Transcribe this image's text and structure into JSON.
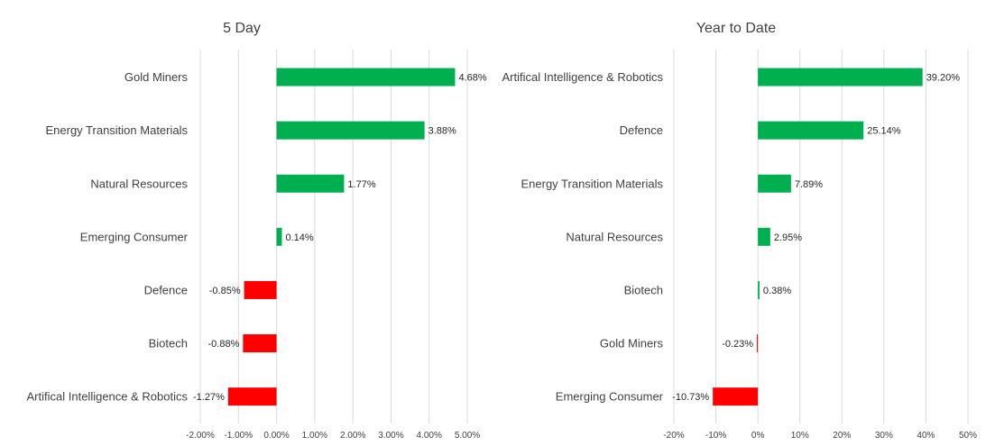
{
  "chart_data": [
    {
      "type": "bar",
      "orientation": "horizontal",
      "title": "5 Day",
      "categories": [
        "Gold Miners",
        "Energy Transition Materials",
        "Natural Resources",
        "Emerging Consumer",
        "Defence",
        "Biotech",
        "Artifical Intelligence & Robotics"
      ],
      "values": [
        4.68,
        3.88,
        1.77,
        0.14,
        -0.85,
        -0.88,
        -1.27
      ],
      "value_labels": [
        "4.68%",
        "3.88%",
        "1.77%",
        "0.14%",
        "-0.85%",
        "-0.88%",
        "-1.27%"
      ],
      "xlim": [
        -2,
        5
      ],
      "xticks": [
        -2,
        -1,
        0,
        1,
        2,
        3,
        4,
        5
      ],
      "xtick_labels": [
        "-2.00%",
        "-1.00%",
        "0.00%",
        "1.00%",
        "2.00%",
        "3.00%",
        "4.00%",
        "5.00%"
      ],
      "grid": true,
      "positive_color": "#00b050",
      "negative_color": "#ff0000"
    },
    {
      "type": "bar",
      "orientation": "horizontal",
      "title": "Year to Date",
      "categories": [
        "Artifical Intelligence & Robotics",
        "Defence",
        "Energy Transition Materials",
        "Natural Resources",
        "Biotech",
        "Gold Miners",
        "Emerging Consumer"
      ],
      "values": [
        39.2,
        25.14,
        7.89,
        2.95,
        0.38,
        -0.23,
        -10.73
      ],
      "value_labels": [
        "39.20%",
        "25.14%",
        "7.89%",
        "2.95%",
        "0.38%",
        "-0.23%",
        "-10.73%"
      ],
      "xlim": [
        -20,
        50
      ],
      "xticks": [
        -20,
        -10,
        0,
        10,
        20,
        30,
        40,
        50
      ],
      "xtick_labels": [
        "-20%",
        "-10%",
        "0%",
        "10%",
        "20%",
        "30%",
        "40%",
        "50%"
      ],
      "grid": true,
      "positive_color": "#00b050",
      "negative_color": "#ff0000"
    }
  ]
}
